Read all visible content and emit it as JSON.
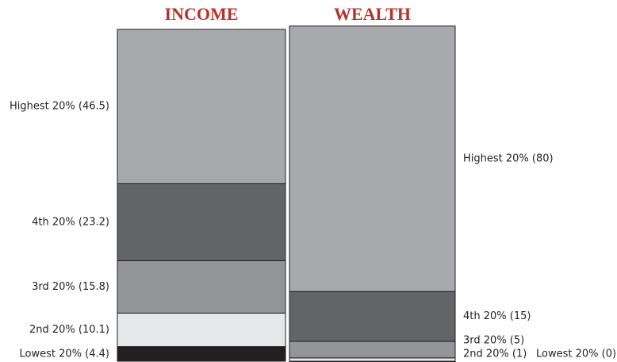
{
  "chart_data": {
    "type": "stacked_bar",
    "categories": [
      "INCOME",
      "WEALTH"
    ],
    "ylim": [
      0,
      100
    ],
    "series": [
      {
        "color": "#231f20",
        "values": [
          4.4,
          0
        ],
        "value_labels": [
          "Lowest 20%  (4.4)",
          "Lowest 20% (0)"
        ]
      },
      {
        "color": "#e6e7e8",
        "values": [
          10.1,
          1
        ],
        "value_labels": [
          "2nd 20%  (10.1)",
          "2nd 20% (1)"
        ]
      },
      {
        "color": "#939598",
        "values": [
          15.8,
          5
        ],
        "value_labels": [
          "3rd 20% (15.8)",
          "3rd 20% (5)"
        ]
      },
      {
        "color": "#636466",
        "values": [
          23.2,
          15
        ],
        "value_labels": [
          "4th 20%  (23.2)",
          "4th 20% (15)"
        ]
      },
      {
        "color": "#a7a9ac",
        "values": [
          46.5,
          80
        ],
        "value_labels": [
          "Highest 20%  (46.5)",
          "Highest 20% (80)"
        ]
      }
    ]
  }
}
